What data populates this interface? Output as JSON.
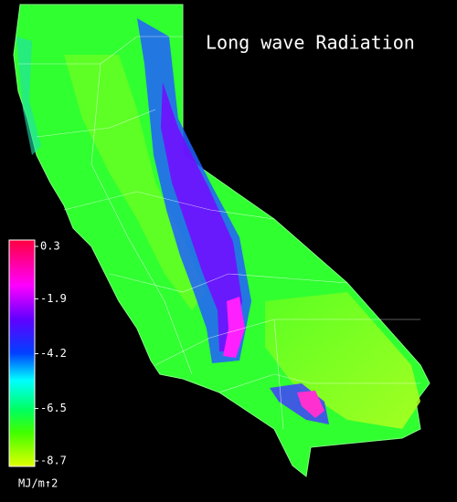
{
  "title": "Long wave Radiation",
  "colorbar": {
    "ticks": [
      0.3,
      -1.9,
      -4.2,
      -6.5,
      -8.7
    ],
    "unit": "MJ/m↑2"
  }
}
